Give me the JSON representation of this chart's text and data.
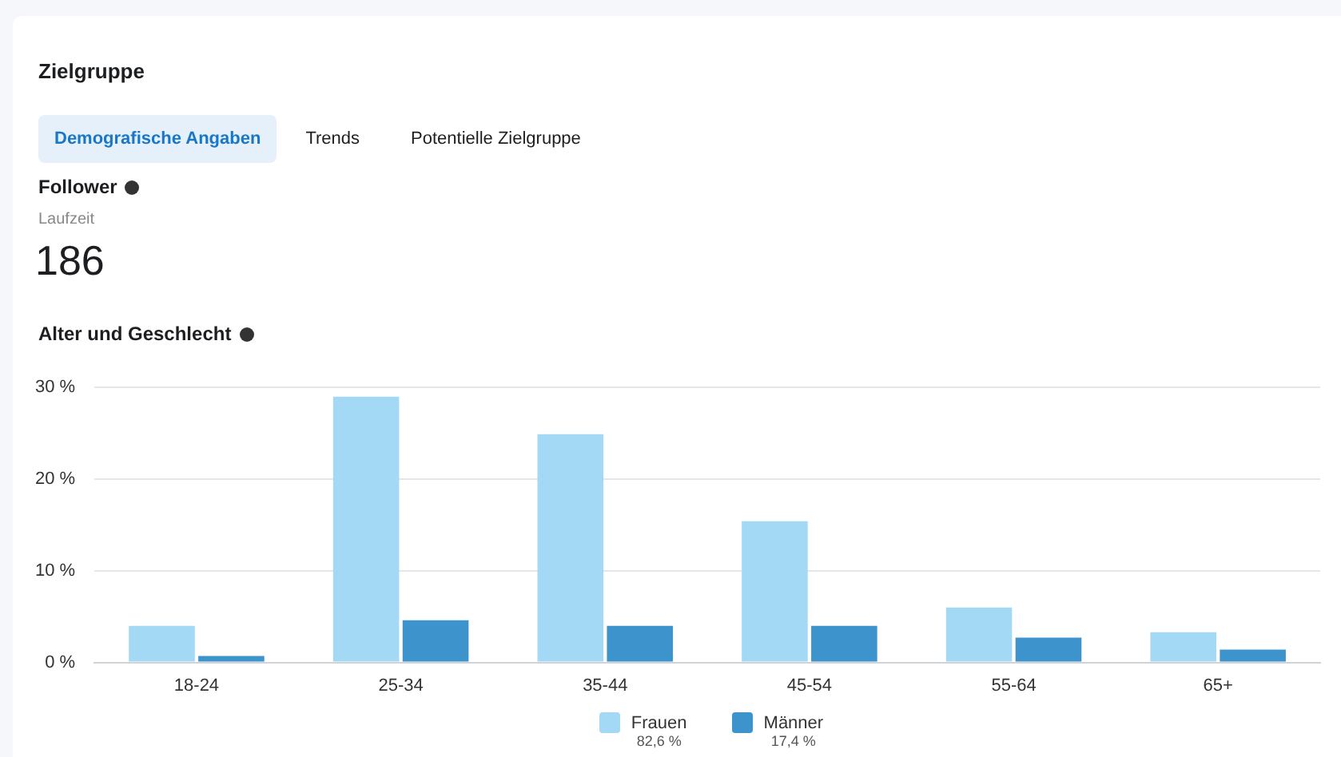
{
  "chart_data": {
    "type": "bar",
    "title": "Alter und Geschlecht",
    "categories": [
      "18-24",
      "25-34",
      "35-44",
      "45-54",
      "55-64",
      "65+"
    ],
    "series": [
      {
        "name": "Frauen",
        "color": "#a3d9f5",
        "values": [
          4.0,
          29.0,
          24.9,
          15.4,
          6.0,
          3.3
        ]
      },
      {
        "name": "Männer",
        "color": "#3d94cc",
        "values": [
          0.7,
          4.6,
          4.0,
          4.0,
          2.7,
          1.4
        ]
      }
    ],
    "ylim": [
      0,
      30
    ],
    "yticks": [
      {
        "value": 0,
        "label": "0 %"
      },
      {
        "value": 10,
        "label": "10 %"
      },
      {
        "value": 20,
        "label": "20 %"
      },
      {
        "value": 30,
        "label": "30 %"
      }
    ],
    "grid": "y",
    "legend": "bottom",
    "annotations": [
      "Zielgruppe",
      "Demografische Angaben",
      "Trends",
      "Potentielle Zielgruppe",
      "Follower",
      "Laufzeit",
      "186",
      "82,6 %",
      "17,4 %"
    ]
  }
}
